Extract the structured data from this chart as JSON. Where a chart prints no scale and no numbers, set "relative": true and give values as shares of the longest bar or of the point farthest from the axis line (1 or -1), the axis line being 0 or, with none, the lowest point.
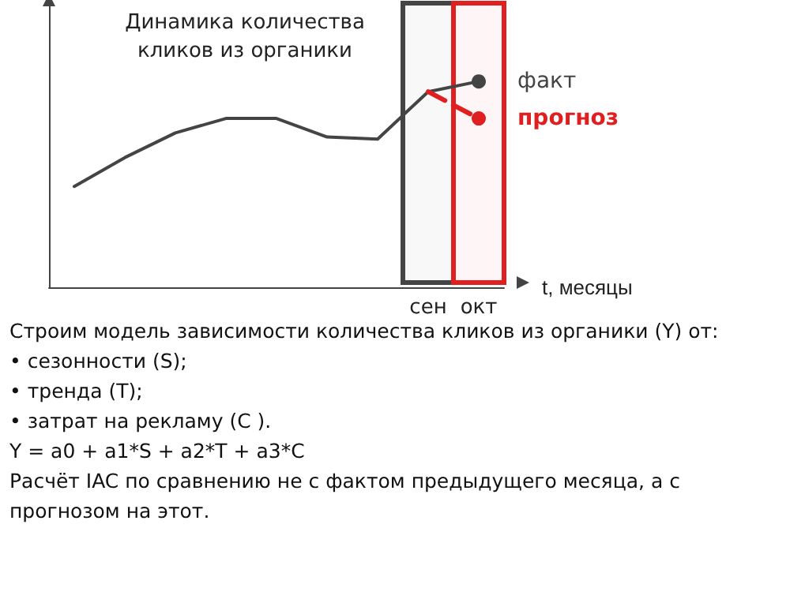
{
  "chart_data": {
    "type": "line",
    "title": "Динамика количества кликов из органики",
    "xlabel": "t, месяцы",
    "relative": true,
    "categories": [
      null,
      null,
      null,
      null,
      null,
      null,
      null,
      "сен",
      "окт"
    ],
    "series": [
      {
        "name": "факт",
        "color": "#444444",
        "values": [
          0.49,
          0.63,
          0.75,
          0.82,
          0.82,
          0.73,
          0.72,
          0.95,
          1
        ]
      },
      {
        "name": "прогноз",
        "color": "#e02020",
        "line_style": "dashed",
        "values": [
          null,
          null,
          null,
          null,
          null,
          null,
          null,
          0.95,
          0.82
        ]
      }
    ],
    "bands": [
      {
        "axis": "x",
        "from": "сен",
        "to": "сен",
        "color": "#444444"
      },
      {
        "axis": "x",
        "from": "окт",
        "to": "окт",
        "color": "#e02020"
      }
    ],
    "annotations": [
      "Строим модель зависимости количества кликов из органики (Y) от:",
      "• сезонности (S);",
      "• тренда (T);",
      "• затрат на рекламу (C ).",
      "Y = a0 + a1*S + a2*T + a3*C",
      "Расчёт IAC по сравнению не с фактом предыдущего месяца, а с прогнозом на этот."
    ],
    "grid": false,
    "legend": false,
    "tick_labels": "x"
  }
}
